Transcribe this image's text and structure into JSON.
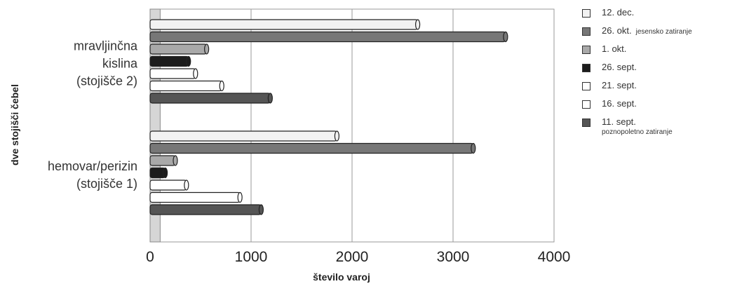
{
  "chart_data": {
    "type": "bar",
    "orientation": "horizontal",
    "xlabel": "število varoj",
    "ylabel": "dve stojišči čebel",
    "xlim": [
      0,
      4000
    ],
    "xticks": [
      0,
      1000,
      2000,
      3000,
      4000
    ],
    "grid": true,
    "legend_position": "right",
    "categories": [
      [
        "mravljinčna",
        "kislina",
        "(stojišče 2)"
      ],
      [
        "hemovar/perizin",
        "(stojišče 1)"
      ]
    ],
    "reference_band": [
      0,
      100
    ],
    "series": [
      {
        "name": "12. dec.",
        "note": "",
        "color": "#f2f2f2",
        "values": [
          2650,
          1850
        ]
      },
      {
        "name": "26. okt.",
        "note": "jesensko zatiranje",
        "color": "#777777",
        "values": [
          3520,
          3200
        ]
      },
      {
        "name": "1. okt.",
        "note": "",
        "color": "#a9a9a9",
        "values": [
          560,
          250
        ]
      },
      {
        "name": "26. sept.",
        "note": "",
        "color": "#1c1c1c",
        "values": [
          380,
          150
        ]
      },
      {
        "name": "21. sept.",
        "note": "",
        "color": "#ffffff",
        "values": [
          450,
          360
        ]
      },
      {
        "name": "16. sept.",
        "note": "",
        "color": "#ffffff",
        "values": [
          710,
          890
        ]
      },
      {
        "name": "11. sept.",
        "note": "poznopoletno zatiranje",
        "color": "#555555",
        "values": [
          1190,
          1100
        ]
      }
    ]
  }
}
